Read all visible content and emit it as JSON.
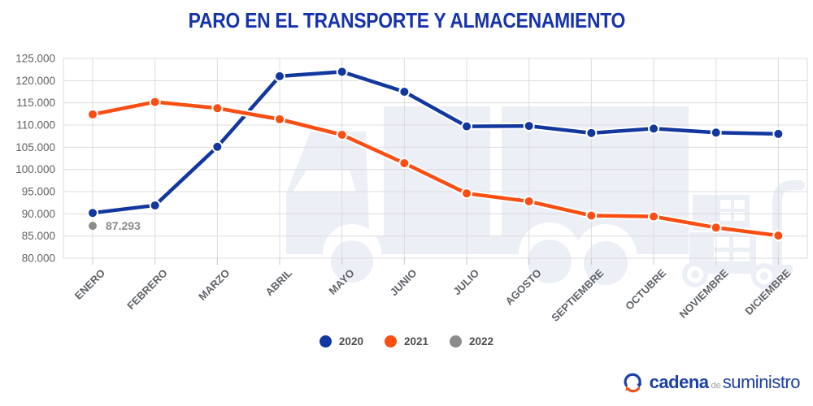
{
  "title": "PARO EN EL TRANSPORTE Y ALMACENAMIENTO",
  "chart_data": {
    "type": "line",
    "title": "PARO EN EL TRANSPORTE Y ALMACENAMIENTO",
    "categories": [
      "ENERO",
      "FEBRERO",
      "MARZO",
      "ABRIL",
      "MAYO",
      "JUNIO",
      "JULIO",
      "AGOSTO",
      "SEPTIEMBRE",
      "OCTUBRE",
      "NOVIEMBRE",
      "DICIEMBRE"
    ],
    "series": [
      {
        "name": "2020",
        "color": "#12379f",
        "values": [
          90200,
          91900,
          105100,
          121000,
          122000,
          117500,
          109700,
          109800,
          108200,
          109200,
          108300,
          108000
        ]
      },
      {
        "name": "2021",
        "color": "#fa4e12",
        "values": [
          112400,
          115200,
          113800,
          111300,
          107800,
          101400,
          94600,
          92800,
          89600,
          89400,
          86900,
          85100
        ]
      },
      {
        "name": "2022",
        "color": "#8b8b8b",
        "values": [
          87293
        ],
        "annotation": "87.293"
      }
    ],
    "ylim": [
      80000,
      125000
    ],
    "ytick_step": 5000,
    "ytick_labels": [
      "80.000",
      "85.000",
      "90.000",
      "95.000",
      "100.000",
      "105.000",
      "110.000",
      "115.000",
      "120.000",
      "125.000"
    ],
    "grid": true,
    "legend_position": "bottom",
    "xlabel": "",
    "ylabel": ""
  },
  "footer_logo": {
    "icon": "circular-arrows-logo-icon",
    "text_primary": "cadena",
    "text_connector": "de",
    "text_secondary": "suministro"
  },
  "colors": {
    "title": "#1733ab",
    "series_2020": "#12379f",
    "series_2021": "#fa4e12",
    "series_2022": "#8b8b8b",
    "gridline": "#dcdcdc",
    "axis_text": "#616161",
    "watermark": "#edeff7"
  }
}
